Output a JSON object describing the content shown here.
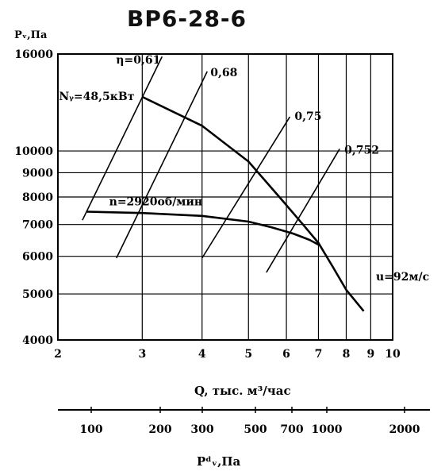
{
  "chart_data": {
    "type": "line",
    "title": "ВР6-28-6",
    "ylabel": "Pᵥ,Па",
    "xlabel": "Q, тыс. м³/час",
    "x2label": "Pᵈᵥ,Па",
    "x_scale": "log",
    "y_scale": "log",
    "xlim": [
      2,
      10
    ],
    "ylim": [
      4000,
      16000
    ],
    "x_ticks": [
      "2",
      "3",
      "4",
      "5",
      "6",
      "7",
      "8",
      "9",
      "10"
    ],
    "y_ticks": [
      "16000",
      "10000",
      "9000",
      "8000",
      "7000",
      "6000",
      "5000",
      "4000"
    ],
    "pdv_ticks": [
      "100",
      "200",
      "300",
      "500",
      "700",
      "1000",
      "2000"
    ],
    "series": [
      {
        "name": "Nᵧ=48,5кВт",
        "x": [
          3.0,
          4.0,
          5.0,
          5.8,
          6.5,
          7.0,
          7.5,
          8.0,
          8.7
        ],
        "y": [
          13000,
          11300,
          9500,
          8000,
          7000,
          6400,
          5700,
          5100,
          4600
        ]
      },
      {
        "name": "n=2920об/мин",
        "x": [
          2.3,
          3.0,
          4.0,
          5.0,
          5.6,
          6.2,
          6.7,
          7.0
        ],
        "y": [
          7450,
          7400,
          7300,
          7100,
          6900,
          6700,
          6500,
          6350
        ]
      }
    ],
    "efficiency_lines": [
      {
        "label": "η=0,61",
        "x": [
          2.25,
          3.3
        ],
        "y": [
          7150,
          15800
        ]
      },
      {
        "label": "0,68",
        "x": [
          2.65,
          4.1
        ],
        "y": [
          5950,
          14700
        ]
      },
      {
        "label": "0,75",
        "x": [
          4.0,
          6.1
        ],
        "y": [
          5950,
          11800
        ]
      },
      {
        "label": "0,752",
        "x": [
          5.45,
          7.75
        ],
        "y": [
          5550,
          10100
        ]
      }
    ],
    "annotations": [
      "u=92м/с"
    ],
    "grid": true
  }
}
